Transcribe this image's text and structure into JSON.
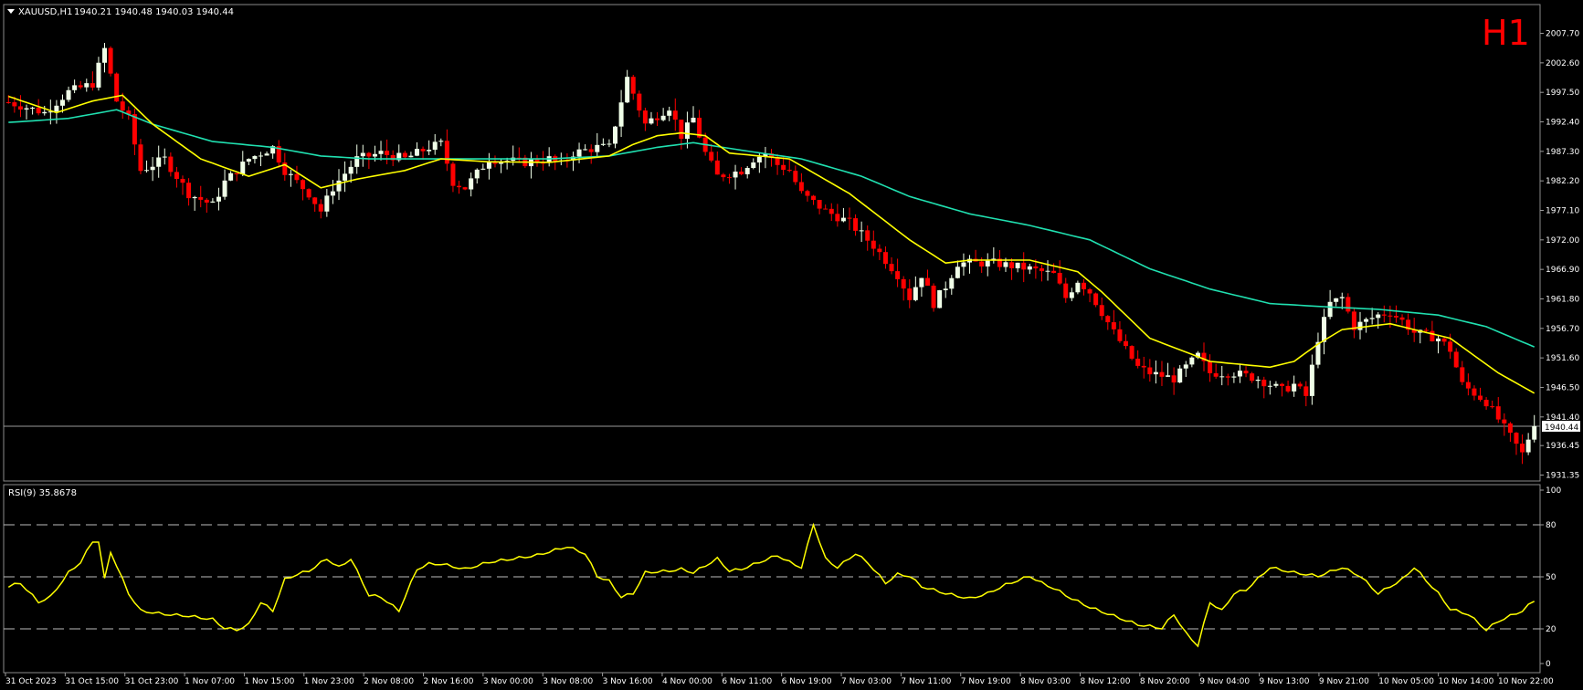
{
  "header": {
    "symbol_label": "XAUUSD,H1",
    "ohlc_label": "1940.21 1940.48 1940.03 1940.44",
    "timeframe_badge": "H1"
  },
  "rsi_header": "RSI(9) 35.8678",
  "colors": {
    "background": "#000000",
    "bull": "#f0ffe8",
    "bear": "#ff0000",
    "ma_fast": "#ffff00",
    "ma_slow": "#20e0b0",
    "rsi": "#ffff00",
    "grid": "#ffffff",
    "badge": "#ff0000"
  },
  "chart_data": [
    {
      "type": "candlestick",
      "symbol": "XAUUSD",
      "timeframe": "H1",
      "y_ticks": [
        2007.7,
        2002.6,
        1997.5,
        1992.4,
        1987.3,
        1982.2,
        1977.1,
        1972.0,
        1966.9,
        1961.8,
        1956.7,
        1951.6,
        1946.5,
        1941.4,
        1936.45,
        1931.35
      ],
      "y_tick_labels": [
        "2007.70",
        "2002.60",
        "1997.50",
        "1992.40",
        "1987.30",
        "1982.20",
        "1977.10",
        "1972.00",
        "1966.90",
        "1961.80",
        "1956.70",
        "1951.60",
        "1946.50",
        "1941.40",
        "1936.45",
        "1931.35"
      ],
      "ylim": [
        1930.8,
        2012.2
      ],
      "current_price": 1940.44,
      "current_price_label": "1940.44",
      "x_tick_labels": [
        "31 Oct 2023",
        "31 Oct 15:00",
        "31 Oct 23:00",
        "1 Nov 07:00",
        "1 Nov 15:00",
        "1 Nov 23:00",
        "2 Nov 08:00",
        "2 Nov 16:00",
        "3 Nov 00:00",
        "3 Nov 08:00",
        "3 Nov 16:00",
        "4 Nov 00:00",
        "6 Nov 11:00",
        "6 Nov 19:00",
        "7 Nov 03:00",
        "7 Nov 11:00",
        "7 Nov 19:00",
        "8 Nov 03:00",
        "8 Nov 12:00",
        "8 Nov 20:00",
        "9 Nov 04:00",
        "9 Nov 13:00",
        "9 Nov 21:00",
        "10 Nov 05:00",
        "10 Nov 14:00",
        "10 Nov 22:00"
      ],
      "close_anchors": [
        [
          0,
          1995.8
        ],
        [
          6,
          1994.0
        ],
        [
          10,
          1997.6
        ],
        [
          14,
          1999.0
        ],
        [
          16,
          2005.0
        ],
        [
          18,
          1996.0
        ],
        [
          20,
          1993.0
        ],
        [
          22,
          1984.0
        ],
        [
          26,
          1986.0
        ],
        [
          30,
          1980.0
        ],
        [
          34,
          1978.0
        ],
        [
          36,
          1982.0
        ],
        [
          40,
          1986.0
        ],
        [
          44,
          1988.0
        ],
        [
          46,
          1984.0
        ],
        [
          50,
          1980.0
        ],
        [
          52,
          1977.0
        ],
        [
          54,
          1981.0
        ],
        [
          58,
          1986.0
        ],
        [
          62,
          1987.0
        ],
        [
          66,
          1986.0
        ],
        [
          70,
          1988.0
        ],
        [
          72,
          1988.6
        ],
        [
          74,
          1982.0
        ],
        [
          76,
          1981.0
        ],
        [
          80,
          1986.0
        ],
        [
          86,
          1985.4
        ],
        [
          90,
          1986.0
        ],
        [
          92,
          1985.0
        ],
        [
          94,
          1987.0
        ],
        [
          98,
          1988.0
        ],
        [
          100,
          1988.0
        ],
        [
          103,
          2000.0
        ],
        [
          106,
          1992.0
        ],
        [
          110,
          1995.0
        ],
        [
          112,
          1990.0
        ],
        [
          114,
          1993.0
        ],
        [
          116,
          1987.0
        ],
        [
          118,
          1983.0
        ],
        [
          122,
          1984.0
        ],
        [
          124,
          1986.0
        ],
        [
          126,
          1987.0
        ],
        [
          128,
          1985.0
        ],
        [
          130,
          1984.0
        ],
        [
          132,
          1980.0
        ],
        [
          136,
          1977.0
        ],
        [
          140,
          1975.0
        ],
        [
          144,
          1971.0
        ],
        [
          148,
          1966.0
        ],
        [
          150,
          1962.0
        ],
        [
          152,
          1966.0
        ],
        [
          154,
          1961.0
        ],
        [
          156,
          1964.0
        ],
        [
          158,
          1968.0
        ],
        [
          164,
          1968.0
        ],
        [
          170,
          1967.0
        ],
        [
          174,
          1966.0
        ],
        [
          176,
          1962.0
        ],
        [
          178,
          1965.0
        ],
        [
          180,
          1963.0
        ],
        [
          184,
          1956.0
        ],
        [
          188,
          1950.0
        ],
        [
          190,
          1949.0
        ],
        [
          194,
          1948.0
        ],
        [
          198,
          1952.0
        ],
        [
          200,
          1949.0
        ],
        [
          204,
          1949.0
        ],
        [
          208,
          1948.0
        ],
        [
          212,
          1946.0
        ],
        [
          214,
          1947.0
        ],
        [
          216,
          1945.0
        ],
        [
          218,
          1955.0
        ],
        [
          220,
          1961.0
        ],
        [
          222,
          1962.0
        ],
        [
          224,
          1957.0
        ],
        [
          228,
          1959.0
        ],
        [
          230,
          1959.5
        ],
        [
          232,
          1958.0
        ],
        [
          234,
          1956.0
        ],
        [
          238,
          1955.0
        ],
        [
          240,
          1953.0
        ],
        [
          242,
          1947.0
        ],
        [
          246,
          1944.0
        ],
        [
          248,
          1941.0
        ],
        [
          250,
          1938.0
        ],
        [
          252,
          1935.0
        ],
        [
          254,
          1940.44
        ]
      ],
      "ma_fast_anchors": [
        [
          0,
          1996.8
        ],
        [
          8,
          1994.0
        ],
        [
          14,
          1996.0
        ],
        [
          19,
          1997.0
        ],
        [
          24,
          1992.0
        ],
        [
          32,
          1986.0
        ],
        [
          40,
          1983.0
        ],
        [
          46,
          1985.0
        ],
        [
          52,
          1981.0
        ],
        [
          58,
          1982.5
        ],
        [
          66,
          1984.0
        ],
        [
          72,
          1986.0
        ],
        [
          80,
          1985.5
        ],
        [
          90,
          1985.4
        ],
        [
          100,
          1986.5
        ],
        [
          104,
          1988.5
        ],
        [
          108,
          1990.0
        ],
        [
          112,
          1990.5
        ],
        [
          116,
          1990.0
        ],
        [
          120,
          1987.0
        ],
        [
          130,
          1986.0
        ],
        [
          140,
          1980.0
        ],
        [
          150,
          1972.0
        ],
        [
          156,
          1968.0
        ],
        [
          160,
          1968.5
        ],
        [
          170,
          1968.5
        ],
        [
          178,
          1966.5
        ],
        [
          182,
          1963.0
        ],
        [
          190,
          1955.0
        ],
        [
          200,
          1951.0
        ],
        [
          210,
          1950.0
        ],
        [
          214,
          1951.0
        ],
        [
          218,
          1954.0
        ],
        [
          222,
          1956.5
        ],
        [
          230,
          1957.5
        ],
        [
          240,
          1955.0
        ],
        [
          248,
          1949.0
        ],
        [
          254,
          1945.5
        ]
      ],
      "ma_slow_anchors": [
        [
          0,
          1992.3
        ],
        [
          10,
          1993.0
        ],
        [
          18,
          1994.5
        ],
        [
          24,
          1992.0
        ],
        [
          34,
          1989.0
        ],
        [
          44,
          1988.0
        ],
        [
          52,
          1986.5
        ],
        [
          60,
          1986.0
        ],
        [
          72,
          1986.0
        ],
        [
          90,
          1986.0
        ],
        [
          100,
          1986.5
        ],
        [
          108,
          1988.0
        ],
        [
          114,
          1988.8
        ],
        [
          122,
          1987.5
        ],
        [
          132,
          1986.0
        ],
        [
          142,
          1983.0
        ],
        [
          150,
          1979.5
        ],
        [
          160,
          1976.5
        ],
        [
          170,
          1974.5
        ],
        [
          180,
          1972.0
        ],
        [
          190,
          1967.0
        ],
        [
          200,
          1963.5
        ],
        [
          210,
          1961.0
        ],
        [
          218,
          1960.5
        ],
        [
          228,
          1960.0
        ],
        [
          238,
          1959.0
        ],
        [
          246,
          1957.0
        ],
        [
          254,
          1953.5
        ]
      ],
      "n_bars": 255,
      "indicators": [
        "moving average (yellow)",
        "moving average (teal)"
      ]
    },
    {
      "type": "line",
      "name": "RSI(9)",
      "value_label": "35.8678",
      "ylim": [
        0,
        100
      ],
      "y_tick_labels": [
        "100",
        "80",
        "50",
        "20",
        "0"
      ],
      "levels": [
        80,
        50,
        20
      ],
      "rsi_anchors": [
        [
          0,
          44
        ],
        [
          2,
          46
        ],
        [
          5,
          35
        ],
        [
          7,
          38
        ],
        [
          10,
          52
        ],
        [
          12,
          58
        ],
        [
          14,
          70
        ],
        [
          15,
          70
        ],
        [
          16,
          48
        ],
        [
          17,
          64
        ],
        [
          20,
          40
        ],
        [
          22,
          30
        ],
        [
          26,
          28
        ],
        [
          30,
          27
        ],
        [
          34,
          25
        ],
        [
          36,
          20
        ],
        [
          38,
          19
        ],
        [
          40,
          22
        ],
        [
          42,
          35
        ],
        [
          44,
          30
        ],
        [
          46,
          48
        ],
        [
          48,
          51
        ],
        [
          50,
          53
        ],
        [
          53,
          60
        ],
        [
          55,
          55
        ],
        [
          57,
          60
        ],
        [
          60,
          39
        ],
        [
          62,
          38
        ],
        [
          65,
          30
        ],
        [
          68,
          54
        ],
        [
          70,
          57
        ],
        [
          72,
          57
        ],
        [
          76,
          54
        ],
        [
          80,
          58
        ],
        [
          84,
          60
        ],
        [
          88,
          62
        ],
        [
          90,
          64
        ],
        [
          93,
          67
        ],
        [
          96,
          63
        ],
        [
          98,
          50
        ],
        [
          100,
          47
        ],
        [
          102,
          38
        ],
        [
          104,
          40
        ],
        [
          106,
          52
        ],
        [
          110,
          53
        ],
        [
          112,
          54
        ],
        [
          114,
          52
        ],
        [
          118,
          60
        ],
        [
          120,
          53
        ],
        [
          122,
          54
        ],
        [
          125,
          58
        ],
        [
          128,
          62
        ],
        [
          130,
          58
        ],
        [
          132,
          55
        ],
        [
          134,
          80
        ],
        [
          136,
          60
        ],
        [
          138,
          55
        ],
        [
          141,
          63
        ],
        [
          143,
          58
        ],
        [
          146,
          46
        ],
        [
          148,
          51
        ],
        [
          150,
          50
        ],
        [
          152,
          44
        ],
        [
          156,
          40
        ],
        [
          160,
          37
        ],
        [
          163,
          40
        ],
        [
          166,
          45
        ],
        [
          170,
          50
        ],
        [
          172,
          46
        ],
        [
          174,
          43
        ],
        [
          177,
          37
        ],
        [
          180,
          32
        ],
        [
          184,
          27
        ],
        [
          188,
          22
        ],
        [
          192,
          20
        ],
        [
          194,
          28
        ],
        [
          196,
          17
        ],
        [
          198,
          10
        ],
        [
          200,
          35
        ],
        [
          202,
          30
        ],
        [
          204,
          40
        ],
        [
          206,
          42
        ],
        [
          210,
          55
        ],
        [
          214,
          52
        ],
        [
          218,
          50
        ],
        [
          222,
          55
        ],
        [
          225,
          50
        ],
        [
          228,
          40
        ],
        [
          232,
          48
        ],
        [
          234,
          55
        ],
        [
          238,
          40
        ],
        [
          240,
          31
        ],
        [
          243,
          28
        ],
        [
          246,
          19
        ],
        [
          248,
          24
        ],
        [
          252,
          30
        ],
        [
          254,
          35.87
        ]
      ]
    }
  ]
}
